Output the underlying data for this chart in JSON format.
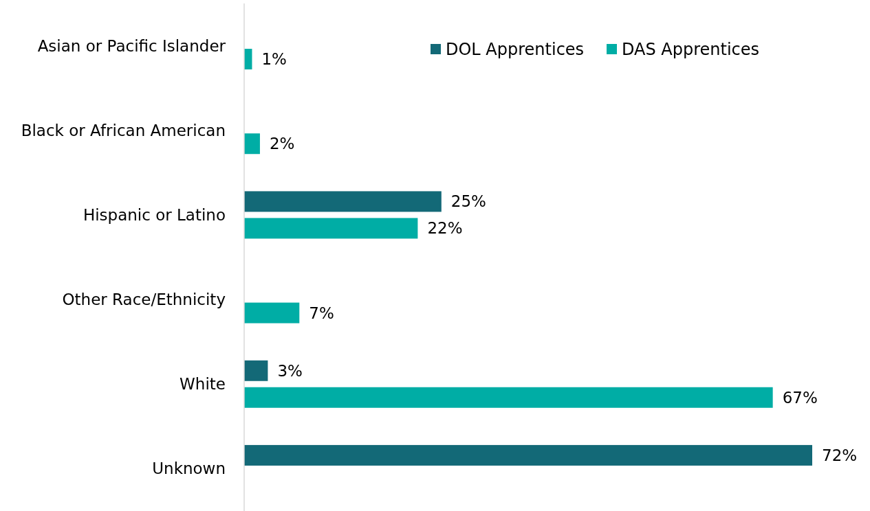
{
  "chart_data": {
    "type": "bar",
    "orientation": "horizontal",
    "categories": [
      "Asian or Pacific Islander",
      "Black or African American",
      "Hispanic or Latino",
      "Other Race/Ethnicity",
      "White",
      "Unknown"
    ],
    "series": [
      {
        "name": "DOL Apprentices",
        "color": "#136977",
        "values": [
          null,
          null,
          25,
          null,
          3,
          72
        ],
        "value_labels": [
          null,
          null,
          "25%",
          null,
          "3%",
          "72%"
        ]
      },
      {
        "name": "DAS Apprentices",
        "color": "#00ada5",
        "values": [
          1,
          2,
          22,
          7,
          67,
          null
        ],
        "value_labels": [
          "1%",
          "2%",
          "22%",
          "7%",
          "67%",
          null
        ]
      }
    ],
    "legend": "top right"
  }
}
